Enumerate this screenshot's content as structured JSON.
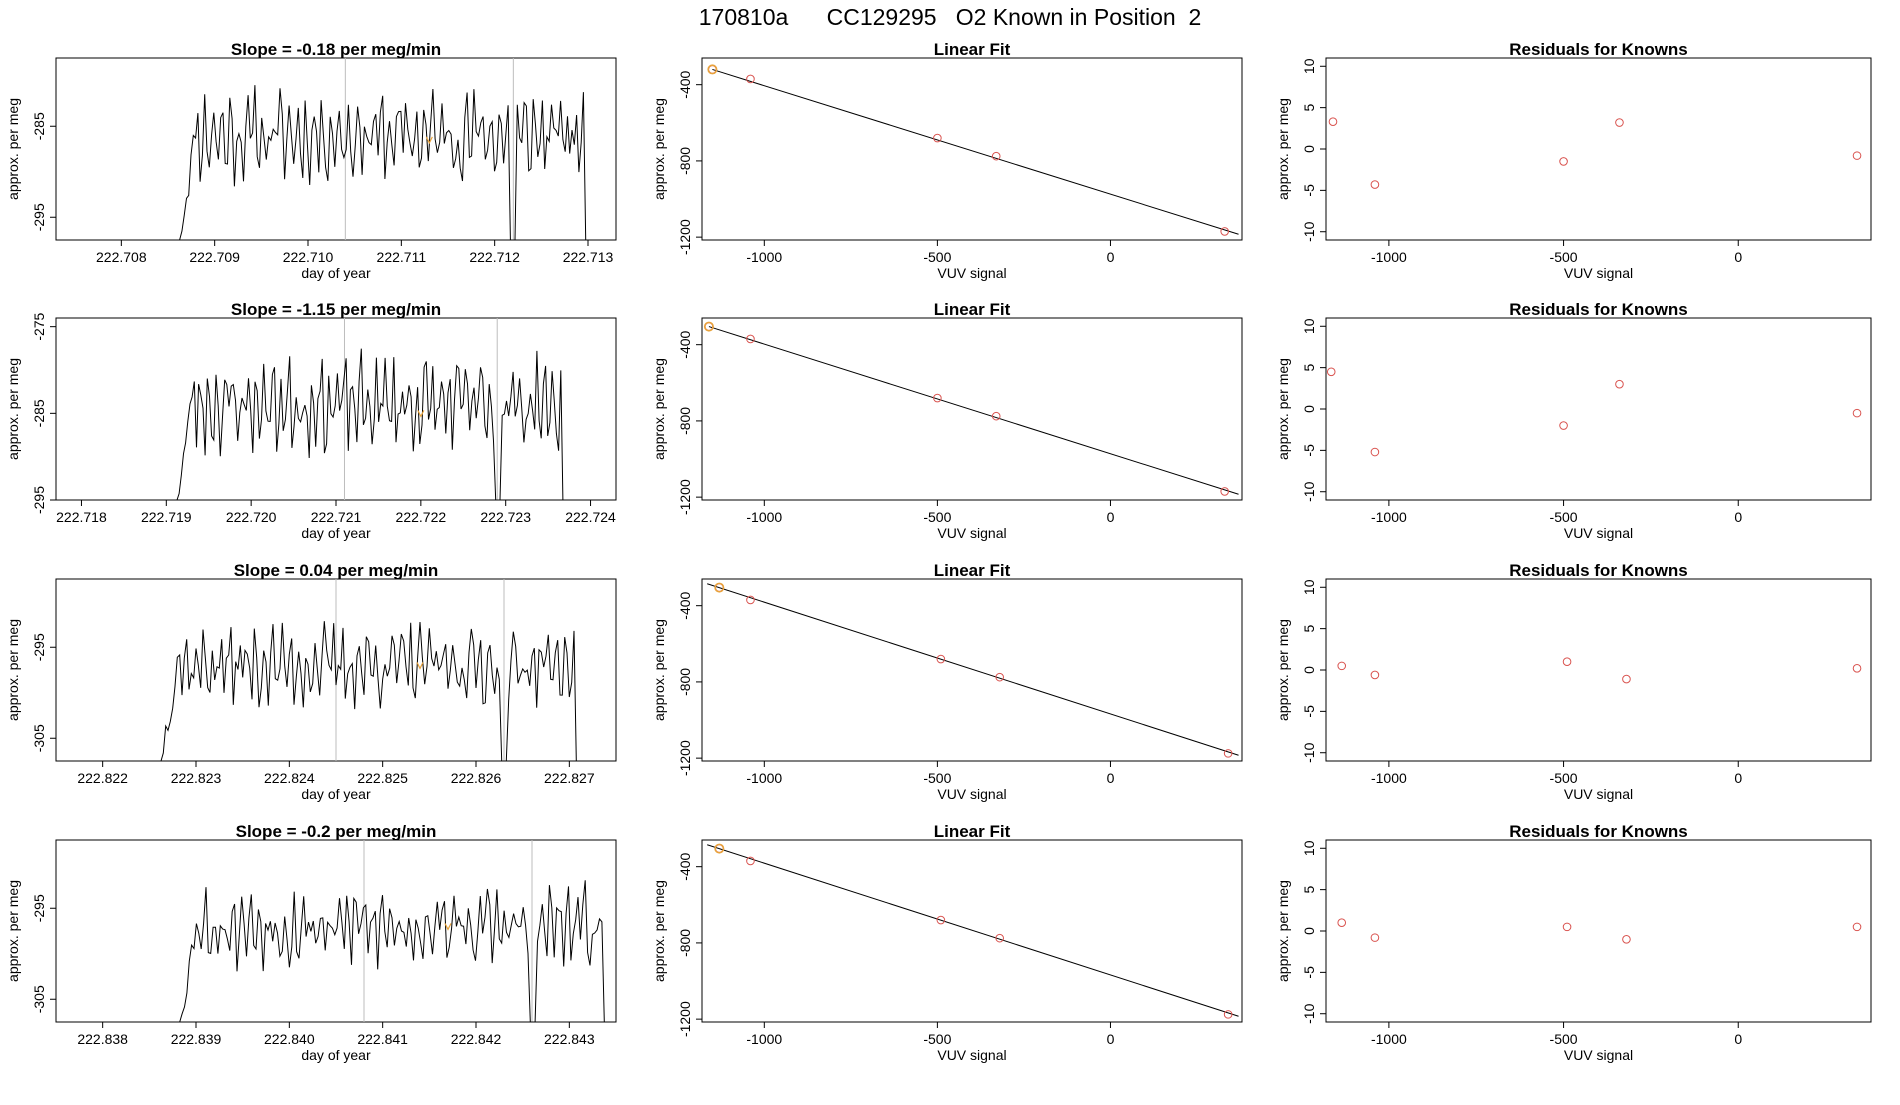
{
  "title": "170810a      CC129295   O2 Known in Position  2",
  "colors": {
    "trace": "#000000",
    "marker": "#e8a33c",
    "points": "#d9534f",
    "grid": "#bdbdbd"
  },
  "chart_data": [
    {
      "type": "line",
      "title": "Slope =  -0.18  per meg/min",
      "xlabel": "day of year",
      "ylabel": "approx. per meg",
      "xlim": [
        222.7073,
        222.7133
      ],
      "ylim": [
        -297.5,
        -277.5
      ],
      "xticks": [
        222.708,
        222.709,
        222.71,
        222.711,
        222.712,
        222.713
      ],
      "xtick_labels": [
        "222.708",
        "222.709",
        "222.710",
        "222.711",
        "222.712",
        "222.713"
      ],
      "yticks": [
        -285,
        -295
      ],
      "ytick_labels": [
        "-285",
        "-295"
      ],
      "vlines": [
        222.7104,
        222.7122
      ],
      "marker": [
        222.7113,
        -286.5
      ],
      "range": [
        222.7086,
        222.713
      ],
      "base": -286,
      "amp": 4.5,
      "seed": 11
    },
    {
      "type": "line",
      "title": "Linear Fit",
      "xlabel": "VUV signal",
      "ylabel": "approx. per meg",
      "xlim": [
        -1180,
        380
      ],
      "ylim": [
        -1215,
        -260
      ],
      "xticks": [
        -1000,
        -500,
        0
      ],
      "xtick_labels": [
        "-1000",
        "-500",
        "0"
      ],
      "yticks": [
        -400,
        -800,
        -1200
      ],
      "ytick_labels": [
        "-400",
        "-800",
        "-1200"
      ],
      "points": [
        {
          "x": -1150,
          "y": -320
        },
        {
          "x": -1040,
          "y": -370
        },
        {
          "x": -500,
          "y": -680
        },
        {
          "x": -330,
          "y": -775
        },
        {
          "x": 330,
          "y": -1170
        }
      ],
      "highlight": {
        "x": -1150,
        "y": -320
      },
      "fit": {
        "x": [
          -1150,
          370
        ],
        "y": [
          -320,
          -1185
        ]
      }
    },
    {
      "type": "scatter",
      "title": "Residuals for Knowns",
      "xlabel": "VUV signal",
      "ylabel": "approx. per meg",
      "xlim": [
        -1180,
        380
      ],
      "ylim": [
        -11,
        11
      ],
      "xticks": [
        -1000,
        -500,
        0
      ],
      "xtick_labels": [
        "-1000",
        "-500",
        "0"
      ],
      "yticks": [
        10,
        5,
        0,
        -5,
        -10
      ],
      "ytick_labels": [
        "10",
        "5",
        "0",
        "-5",
        "-10"
      ],
      "points": [
        {
          "x": -1160,
          "y": 3.3
        },
        {
          "x": -1040,
          "y": -4.3
        },
        {
          "x": -500,
          "y": -1.5
        },
        {
          "x": -340,
          "y": 3.2
        },
        {
          "x": 340,
          "y": -0.8
        }
      ]
    },
    {
      "type": "line",
      "title": "Slope =  -1.15  per meg/min",
      "xlabel": "day of year",
      "ylabel": "approx. per meg",
      "xlim": [
        222.7177,
        222.7243
      ],
      "ylim": [
        -295,
        -274
      ],
      "xticks": [
        222.718,
        222.719,
        222.72,
        222.721,
        222.722,
        222.723,
        222.724
      ],
      "xtick_labels": [
        "222.718",
        "222.719",
        "222.720",
        "222.721",
        "222.722",
        "222.723",
        "222.724"
      ],
      "yticks": [
        -275,
        -285,
        -295
      ],
      "ytick_labels": [
        "-275",
        "-285",
        "-295"
      ],
      "vlines": [
        222.7211,
        222.7229
      ],
      "marker": [
        222.722,
        -285
      ],
      "range": [
        222.7191,
        222.7237
      ],
      "base": -284,
      "amp": 5,
      "seed": 23
    },
    {
      "type": "line",
      "title": "Linear Fit",
      "xlabel": "VUV signal",
      "ylabel": "approx. per meg",
      "xlim": [
        -1180,
        380
      ],
      "ylim": [
        -1215,
        -260
      ],
      "xticks": [
        -1000,
        -500,
        0
      ],
      "xtick_labels": [
        "-1000",
        "-500",
        "0"
      ],
      "yticks": [
        -400,
        -800,
        -1200
      ],
      "ytick_labels": [
        "-400",
        "-800",
        "-1200"
      ],
      "points": [
        {
          "x": -1160,
          "y": -305
        },
        {
          "x": -1040,
          "y": -370
        },
        {
          "x": -500,
          "y": -680
        },
        {
          "x": -330,
          "y": -775
        },
        {
          "x": 330,
          "y": -1170
        }
      ],
      "highlight": {
        "x": -1160,
        "y": -305
      },
      "fit": {
        "x": [
          -1160,
          370
        ],
        "y": [
          -305,
          -1185
        ]
      }
    },
    {
      "type": "scatter",
      "title": "Residuals for Knowns",
      "xlabel": "VUV signal",
      "ylabel": "approx. per meg",
      "xlim": [
        -1180,
        380
      ],
      "ylim": [
        -11,
        11
      ],
      "xticks": [
        -1000,
        -500,
        0
      ],
      "xtick_labels": [
        "-1000",
        "-500",
        "0"
      ],
      "yticks": [
        10,
        5,
        0,
        -5,
        -10
      ],
      "ytick_labels": [
        "10",
        "5",
        "0",
        "-5",
        "-10"
      ],
      "points": [
        {
          "x": -1165,
          "y": 4.5
        },
        {
          "x": -1040,
          "y": -5.2
        },
        {
          "x": -500,
          "y": -2.0
        },
        {
          "x": -340,
          "y": 3.0
        },
        {
          "x": 340,
          "y": -0.5
        }
      ]
    },
    {
      "type": "line",
      "title": "Slope =  0.04  per meg/min",
      "xlabel": "day of year",
      "ylabel": "approx. per meg",
      "xlim": [
        222.8215,
        222.8275
      ],
      "ylim": [
        -307.5,
        -287.5
      ],
      "xticks": [
        222.822,
        222.823,
        222.824,
        222.825,
        222.826,
        222.827
      ],
      "xtick_labels": [
        "222.822",
        "222.823",
        "222.824",
        "222.825",
        "222.826",
        "222.827"
      ],
      "yticks": [
        -295,
        -305
      ],
      "ytick_labels": [
        "-295",
        "-305"
      ],
      "vlines": [
        222.8245,
        222.8263
      ],
      "marker": [
        222.8254,
        -297
      ],
      "range": [
        222.8226,
        222.8271
      ],
      "base": -297,
      "amp": 4,
      "seed": 37
    },
    {
      "type": "line",
      "title": "Linear Fit",
      "xlabel": "VUV signal",
      "ylabel": "approx. per meg",
      "xlim": [
        -1180,
        380
      ],
      "ylim": [
        -1215,
        -260
      ],
      "xticks": [
        -1000,
        -500,
        0
      ],
      "xtick_labels": [
        "-1000",
        "-500",
        "0"
      ],
      "yticks": [
        -400,
        -800,
        -1200
      ],
      "ytick_labels": [
        "-400",
        "-800",
        "-1200"
      ],
      "points": [
        {
          "x": -1130,
          "y": -305
        },
        {
          "x": -1040,
          "y": -370
        },
        {
          "x": -490,
          "y": -680
        },
        {
          "x": -320,
          "y": -775
        },
        {
          "x": 340,
          "y": -1175
        }
      ],
      "highlight": {
        "x": -1130,
        "y": -305
      },
      "fit": {
        "x": [
          -1165,
          370
        ],
        "y": [
          -285,
          -1185
        ]
      }
    },
    {
      "type": "scatter",
      "title": "Residuals for Knowns",
      "xlabel": "VUV signal",
      "ylabel": "approx. per meg",
      "xlim": [
        -1180,
        380
      ],
      "ylim": [
        -11,
        11
      ],
      "xticks": [
        -1000,
        -500,
        0
      ],
      "xtick_labels": [
        "-1000",
        "-500",
        "0"
      ],
      "yticks": [
        10,
        5,
        0,
        -5,
        -10
      ],
      "ytick_labels": [
        "10",
        "5",
        "0",
        "-5",
        "-10"
      ],
      "points": [
        {
          "x": -1135,
          "y": 0.5
        },
        {
          "x": -1040,
          "y": -0.6
        },
        {
          "x": -490,
          "y": 1.0
        },
        {
          "x": -320,
          "y": -1.1
        },
        {
          "x": 340,
          "y": 0.2
        }
      ]
    },
    {
      "type": "line",
      "title": "Slope =  -0.2  per meg/min",
      "xlabel": "day of year",
      "ylabel": "approx. per meg",
      "xlim": [
        222.8375,
        222.8435
      ],
      "ylim": [
        -307.5,
        -287.5
      ],
      "xticks": [
        222.838,
        222.839,
        222.84,
        222.841,
        222.842,
        222.843
      ],
      "xtick_labels": [
        "222.838",
        "222.839",
        "222.840",
        "222.841",
        "222.842",
        "222.843"
      ],
      "yticks": [
        -295,
        -305
      ],
      "ytick_labels": [
        "-295",
        "-305"
      ],
      "vlines": [
        222.8408,
        222.8426
      ],
      "marker": [
        222.8417,
        -297
      ],
      "range": [
        222.8388,
        222.8434
      ],
      "base": -297,
      "amp": 4,
      "seed": 53
    },
    {
      "type": "line",
      "title": "Linear Fit",
      "xlabel": "VUV signal",
      "ylabel": "approx. per meg",
      "xlim": [
        -1180,
        380
      ],
      "ylim": [
        -1215,
        -260
      ],
      "xticks": [
        -1000,
        -500,
        0
      ],
      "xtick_labels": [
        "-1000",
        "-500",
        "0"
      ],
      "yticks": [
        -400,
        -800,
        -1200
      ],
      "ytick_labels": [
        "-400",
        "-800",
        "-1200"
      ],
      "points": [
        {
          "x": -1130,
          "y": -305
        },
        {
          "x": -1040,
          "y": -370
        },
        {
          "x": -490,
          "y": -680
        },
        {
          "x": -320,
          "y": -775
        },
        {
          "x": 340,
          "y": -1175
        }
      ],
      "highlight": {
        "x": -1130,
        "y": -305
      },
      "fit": {
        "x": [
          -1165,
          370
        ],
        "y": [
          -285,
          -1185
        ]
      }
    },
    {
      "type": "scatter",
      "title": "Residuals for Knowns",
      "xlabel": "VUV signal",
      "ylabel": "approx. per meg",
      "xlim": [
        -1180,
        380
      ],
      "ylim": [
        -11,
        11
      ],
      "xticks": [
        -1000,
        -500,
        0
      ],
      "xtick_labels": [
        "-1000",
        "-500",
        "0"
      ],
      "yticks": [
        10,
        5,
        0,
        -5,
        -10
      ],
      "ytick_labels": [
        "10",
        "5",
        "0",
        "-5",
        "-10"
      ],
      "points": [
        {
          "x": -1135,
          "y": 1.0
        },
        {
          "x": -1040,
          "y": -0.8
        },
        {
          "x": -490,
          "y": 0.5
        },
        {
          "x": -320,
          "y": -1.0
        },
        {
          "x": 340,
          "y": 0.5
        }
      ]
    }
  ]
}
